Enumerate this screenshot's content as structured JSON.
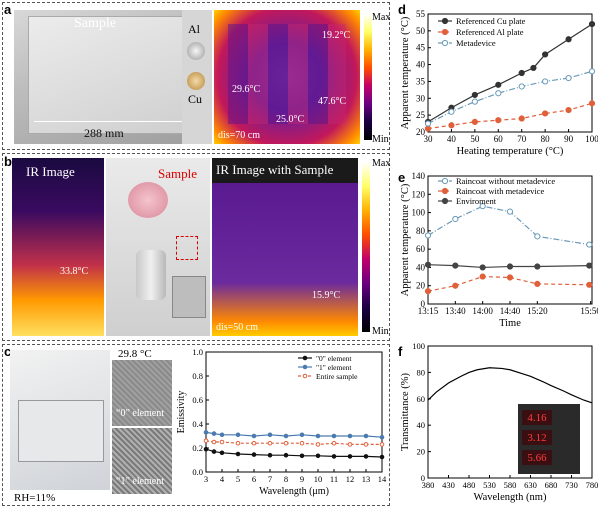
{
  "panel_labels": {
    "a": "a",
    "b": "b",
    "c": "c",
    "d": "d",
    "e": "e",
    "f": "f"
  },
  "panel_a": {
    "sample_label": "Sample",
    "al_label": "Al",
    "cu_label": "Cu",
    "dimension": "288 mm",
    "ir_temps": [
      "19.2°C",
      "29.6°C",
      "25.0°C",
      "47.6°C"
    ],
    "scale_max": "Max",
    "scale_min": "Min",
    "distance": "dis=70 cm"
  },
  "panel_b": {
    "ir_title": "IR Image",
    "ir_temp": "33.8°C",
    "sample_label": "Sample",
    "ir_sample_title": "IR Image with Sample",
    "ir_sample_temp": "15.9°C",
    "scale_max": "Max",
    "scale_min": "Min",
    "distance": "dis=50 cm"
  },
  "panel_c": {
    "temperature": "29.8 °C",
    "element0": "“0” element",
    "element1": "“1” element",
    "rh": "RH=11%"
  },
  "chart_data": [
    {
      "id": "d",
      "type": "line",
      "xlabel": "Heating temperature (°C)",
      "ylabel": "Apparent temperature (°C)",
      "xlim": [
        30,
        100
      ],
      "ylim": [
        20,
        55
      ],
      "xticks": [
        30,
        40,
        50,
        60,
        70,
        80,
        90,
        100
      ],
      "yticks": [
        20,
        25,
        30,
        35,
        40,
        45,
        50,
        55
      ],
      "legend_position": "top-left",
      "series": [
        {
          "name": "Referenced Cu plate",
          "color": "#333333",
          "marker": "filled-circle",
          "dash": "",
          "x": [
            30,
            40,
            50,
            60,
            70,
            75,
            80,
            90,
            100
          ],
          "y": [
            23,
            27.2,
            31,
            34,
            37.5,
            39,
            43,
            47.5,
            52
          ]
        },
        {
          "name": "Referenced Al  plate",
          "color": "#e0603a",
          "marker": "filled-circle",
          "dash": "4,3",
          "x": [
            30,
            40,
            50,
            60,
            70,
            80,
            90,
            100
          ],
          "y": [
            21,
            22,
            23,
            23.5,
            24,
            25.5,
            26.5,
            28.5
          ]
        },
        {
          "name": "Metadevice",
          "color": "#6a9ab8",
          "marker": "open-circle",
          "dash": "6,2,1,2",
          "x": [
            30,
            40,
            50,
            60,
            70,
            80,
            90,
            100
          ],
          "y": [
            22.5,
            26,
            29,
            31.5,
            33.5,
            35,
            36,
            38
          ]
        }
      ]
    },
    {
      "id": "e",
      "type": "line",
      "xlabel": "Time",
      "ylabel": "Apparent temperature (°C)",
      "ylim": [
        0,
        140
      ],
      "categories": [
        "13:15",
        "13:40",
        "14:00",
        "14:40",
        "15:20",
        "15:50"
      ],
      "x": [
        0,
        1,
        2,
        3,
        4,
        5,
        6
      ],
      "tick_positions": [
        0,
        1,
        2,
        3,
        4,
        5.95
      ],
      "yticks": [
        0,
        20,
        40,
        60,
        80,
        100,
        120,
        140
      ],
      "legend_position": "top-left",
      "series": [
        {
          "name": "Raincoat without metadevice",
          "color": "#6a9ab8",
          "marker": "open-circle",
          "dash": "6,2,1,2",
          "x": [
            0,
            1,
            2,
            3,
            4,
            5.9
          ],
          "y": [
            75,
            93,
            107,
            101,
            74,
            65
          ]
        },
        {
          "name": "Raincoat with metadevice",
          "color": "#e0603a",
          "marker": "filled-circle",
          "dash": "4,3",
          "x": [
            0,
            1,
            2,
            3,
            4,
            5.9
          ],
          "y": [
            14,
            20,
            30,
            29,
            22,
            21
          ]
        },
        {
          "name": "Enviroment",
          "color": "#444444",
          "marker": "filled-circle",
          "dash": "",
          "x": [
            0,
            1,
            2,
            3,
            4,
            5.9
          ],
          "y": [
            43,
            42,
            40,
            41,
            41,
            42
          ]
        }
      ]
    },
    {
      "id": "c",
      "type": "line",
      "xlabel": "Wavelength (μm)",
      "ylabel": "Emissivity",
      "xlim": [
        3,
        14
      ],
      "ylim": [
        0,
        1.0
      ],
      "xticks": [
        3,
        4,
        5,
        6,
        7,
        8,
        9,
        10,
        11,
        12,
        13,
        14
      ],
      "yticks": [
        0.0,
        0.2,
        0.4,
        0.6,
        0.8,
        1.0
      ],
      "legend_position": "top-right",
      "series": [
        {
          "name": "\"0\" element",
          "color": "#111111",
          "marker": "filled-circle",
          "dash": "",
          "x": [
            3,
            3.5,
            4,
            5,
            6,
            7,
            8,
            9,
            10,
            11,
            12,
            13,
            14
          ],
          "y": [
            0.19,
            0.17,
            0.16,
            0.15,
            0.145,
            0.14,
            0.14,
            0.135,
            0.135,
            0.13,
            0.13,
            0.13,
            0.125
          ]
        },
        {
          "name": "\"1\" element",
          "color": "#4a7ab0",
          "marker": "filled-circle",
          "dash": "",
          "x": [
            3,
            3.5,
            4,
            5,
            6,
            7,
            8,
            9,
            10,
            11,
            12,
            13,
            14
          ],
          "y": [
            0.33,
            0.32,
            0.31,
            0.31,
            0.3,
            0.31,
            0.3,
            0.31,
            0.3,
            0.3,
            0.3,
            0.3,
            0.29
          ]
        },
        {
          "name": "Entire sample",
          "color": "#e0603a",
          "marker": "open-circle",
          "dash": "3,2",
          "x": [
            3,
            3.5,
            4,
            5,
            6,
            7,
            8,
            9,
            10,
            11,
            12,
            13,
            14
          ],
          "y": [
            0.26,
            0.25,
            0.25,
            0.24,
            0.24,
            0.24,
            0.24,
            0.24,
            0.23,
            0.24,
            0.23,
            0.23,
            0.23
          ]
        }
      ]
    },
    {
      "id": "f",
      "type": "line",
      "xlabel": "Wavelength (nm)",
      "ylabel": "Transmittance (%)",
      "xlim": [
        380,
        780
      ],
      "ylim": [
        0,
        100
      ],
      "xticks": [
        380,
        430,
        480,
        530,
        580,
        630,
        680,
        730,
        780
      ],
      "yticks": [
        0,
        20,
        40,
        60,
        80,
        100
      ],
      "series": [
        {
          "color": "#000000",
          "marker": "none",
          "dash": "",
          "x": [
            380,
            400,
            430,
            460,
            480,
            500,
            530,
            560,
            580,
            610,
            630,
            660,
            680,
            710,
            730,
            760,
            780
          ],
          "y": [
            59,
            65,
            72,
            77,
            80,
            82,
            83.5,
            83,
            82,
            79,
            77,
            73,
            70,
            66,
            63,
            59,
            57
          ]
        }
      ],
      "inset_readings": [
        "4.16",
        "3.12",
        "5.66"
      ]
    }
  ]
}
